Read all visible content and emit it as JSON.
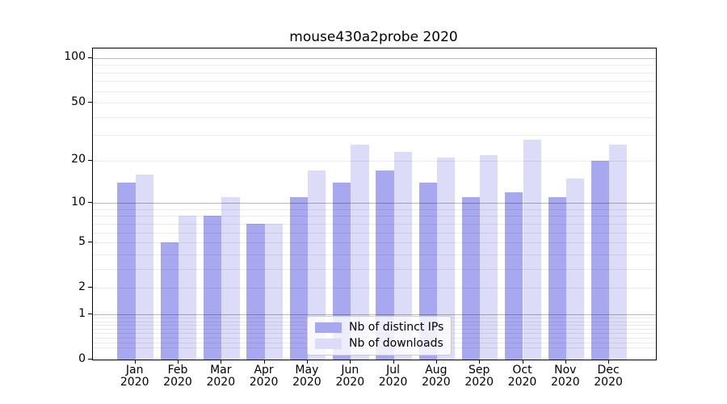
{
  "chart_data": {
    "type": "bar",
    "title": "mouse430a2probe 2020",
    "categories": [
      "Jan",
      "Feb",
      "Mar",
      "Apr",
      "May",
      "Jun",
      "Jul",
      "Aug",
      "Sep",
      "Oct",
      "Nov",
      "Dec"
    ],
    "year": "2020",
    "series": [
      {
        "name": "Nb of distinct IPs",
        "color": "#a8a8f0",
        "values": [
          14,
          5,
          8,
          7,
          11,
          14,
          17,
          14,
          11,
          12,
          11,
          20
        ]
      },
      {
        "name": "Nb of downloads",
        "color": "#dcdcf8",
        "values": [
          16,
          8,
          11,
          7,
          17,
          26,
          23,
          21,
          22,
          28,
          15,
          26
        ]
      }
    ],
    "xlabel": "",
    "ylabel": "",
    "yscale": "log1p",
    "ylim": [
      0,
      116
    ],
    "y_ticks": [
      100,
      50,
      20,
      10,
      5,
      2,
      1,
      0
    ],
    "y_major_gridlines": [
      1,
      10,
      100
    ],
    "grid": "horizontal-major-minor",
    "legend_position": "lower-center"
  }
}
